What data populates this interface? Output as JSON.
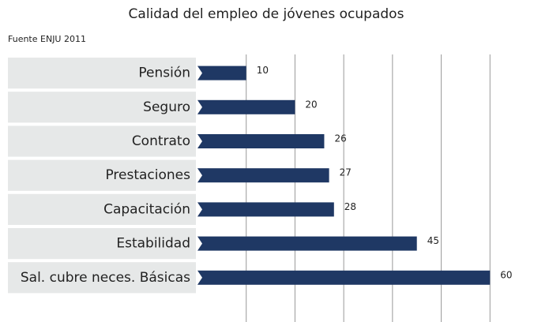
{
  "chart_data": {
    "type": "bar",
    "orientation": "horizontal",
    "title": "Calidad del empleo de jóvenes ocupados",
    "subtitle": "Fuente ENJU 2011",
    "categories": [
      "Pensión",
      "Seguro",
      "Contrato",
      "Prestaciones",
      "Capacitación",
      "Estabilidad",
      "Sal. cubre neces. Básicas"
    ],
    "values": [
      10,
      20,
      26,
      27,
      28,
      45,
      60
    ],
    "color": "#1f3864",
    "xlim": [
      0,
      70
    ],
    "xticks": [
      10,
      20,
      30,
      40,
      50,
      60
    ],
    "grid": true
  }
}
